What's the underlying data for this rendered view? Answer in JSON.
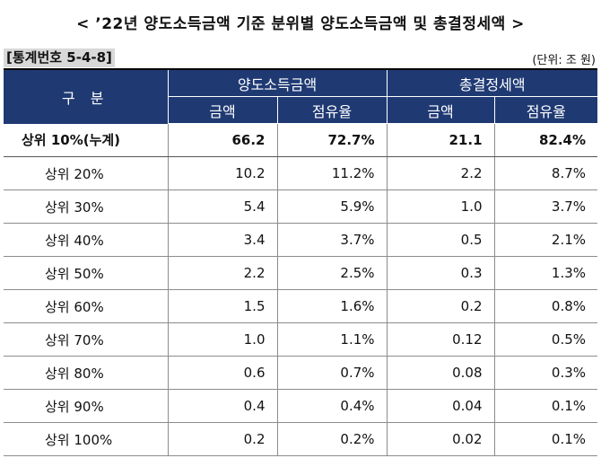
{
  "title": "< ’22년 양도소득금액 기준 분위별 양도소득금액 및 총결정세액 >",
  "table_number": "[통계번호 5-4-8]",
  "unit": "(단위: 조 원)",
  "header": {
    "row_label": "구 분",
    "group1": "양도소득금액",
    "group2": "총결정세액",
    "amount": "금액",
    "share": "점유율"
  },
  "rows": [
    {
      "label": "상위  10%(누계)",
      "v1": "66.2",
      "v2": "72.7%",
      "v3": "21.1",
      "v4": "82.4%"
    },
    {
      "label": "상위  20%",
      "v1": "10.2",
      "v2": "11.2%",
      "v3": "2.2",
      "v4": "8.7%"
    },
    {
      "label": "상위  30%",
      "v1": "5.4",
      "v2": "5.9%",
      "v3": "1.0",
      "v4": "3.7%"
    },
    {
      "label": "상위  40%",
      "v1": "3.4",
      "v2": "3.7%",
      "v3": "0.5",
      "v4": "2.1%"
    },
    {
      "label": "상위  50%",
      "v1": "2.2",
      "v2": "2.5%",
      "v3": "0.3",
      "v4": "1.3%"
    },
    {
      "label": "상위  60%",
      "v1": "1.5",
      "v2": "1.6%",
      "v3": "0.2",
      "v4": "0.8%"
    },
    {
      "label": "상위  70%",
      "v1": "1.0",
      "v2": "1.1%",
      "v3": "0.12",
      "v4": "0.5%"
    },
    {
      "label": "상위  80%",
      "v1": "0.6",
      "v2": "0.7%",
      "v3": "0.08",
      "v4": "0.3%"
    },
    {
      "label": "상위  90%",
      "v1": "0.4",
      "v2": "0.4%",
      "v3": "0.04",
      "v4": "0.1%"
    },
    {
      "label": "상위  100%",
      "v1": "0.2",
      "v2": "0.2%",
      "v3": "0.02",
      "v4": "0.1%"
    }
  ],
  "colors": {
    "header_bg": "#1f3a73",
    "header_text": "#ffffff",
    "table_no_bg": "#d8d8d8"
  }
}
